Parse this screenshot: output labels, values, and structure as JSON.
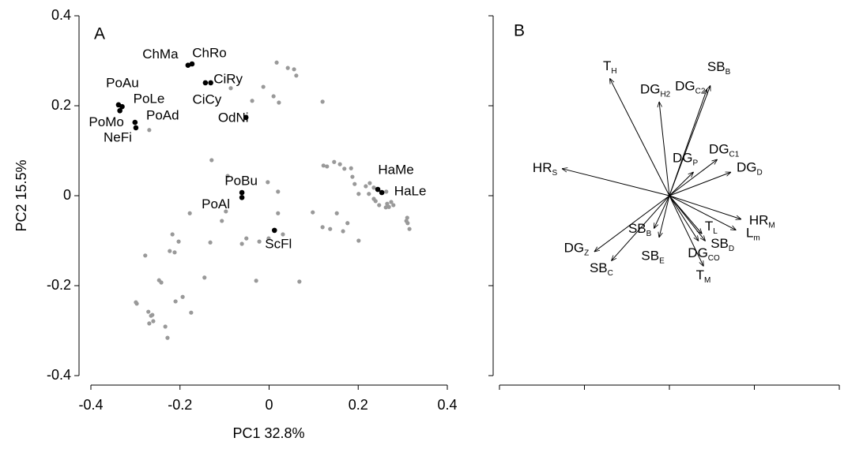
{
  "chart_data": [
    {
      "type": "scatter",
      "panel_label": "A",
      "xlabel": "PC1 32.8%",
      "ylabel": "PC2 15.5%",
      "xlim": [
        -0.4,
        0.4
      ],
      "ylim": [
        -0.4,
        0.4
      ],
      "xticks": [
        -0.4,
        -0.2,
        0,
        0.2,
        0.4
      ],
      "yticks": [
        -0.4,
        -0.2,
        0,
        0.2,
        0.4
      ],
      "series": [
        {
          "color": "#999999",
          "x": [
            0.017,
            0.042,
            0.056,
            0.061,
            -0.013,
            0.01,
            0.022,
            0.12,
            -0.038,
            -0.086,
            -0.269,
            -0.129,
            -0.093,
            -0.003,
            0.02,
            0.02,
            -0.097,
            -0.106,
            -0.132,
            -0.178,
            -0.217,
            -0.203,
            -0.223,
            -0.212,
            -0.278,
            -0.061,
            -0.051,
            -0.022,
            0.031,
            -0.029,
            0.068,
            -0.001,
            -0.247,
            -0.242,
            -0.297,
            -0.299,
            -0.271,
            -0.265,
            -0.269,
            -0.26,
            -0.262,
            -0.233,
            -0.228,
            -0.21,
            -0.194,
            -0.175,
            -0.145,
            0.122,
            0.13,
            0.146,
            0.159,
            0.169,
            0.184,
            0.187,
            0.192,
            0.201,
            0.217,
            0.226,
            0.235,
            0.239,
            0.247,
            0.262,
            0.265,
            0.269,
            0.274,
            0.279,
            0.263,
            0.224,
            0.235,
            0.31,
            0.311,
            0.315,
            0.308,
            0.152,
            0.166,
            0.201,
            0.176,
            0.12,
            0.098,
            0.137
          ],
          "y": [
            0.296,
            0.284,
            0.281,
            0.267,
            0.242,
            0.221,
            0.207,
            0.209,
            0.211,
            0.239,
            0.146,
            0.079,
            0.044,
            0.03,
            0.009,
            -0.039,
            -0.035,
            -0.056,
            -0.104,
            -0.039,
            -0.086,
            -0.102,
            -0.123,
            -0.126,
            -0.133,
            -0.107,
            -0.095,
            -0.102,
            -0.086,
            -0.189,
            -0.191,
            -0.095,
            -0.188,
            -0.193,
            -0.24,
            -0.237,
            -0.258,
            -0.267,
            -0.284,
            -0.279,
            -0.265,
            -0.291,
            -0.316,
            -0.235,
            -0.225,
            -0.26,
            -0.182,
            0.067,
            0.065,
            0.075,
            0.07,
            0.06,
            0.061,
            0.042,
            0.026,
            0.004,
            0.021,
            0.028,
            0.018,
            -0.012,
            -0.021,
            -0.026,
            -0.018,
            -0.025,
            -0.014,
            -0.021,
            0.009,
            0.004,
            -0.007,
            -0.049,
            -0.061,
            -0.074,
            -0.056,
            -0.039,
            -0.079,
            -0.1,
            -0.061,
            -0.07,
            -0.037,
            -0.074
          ]
        },
        {
          "color": "#000000",
          "labels": [
            "ChMa",
            "ChRo",
            "CiRy",
            "CiCy",
            "PoAu",
            "PoLe",
            "PoMo",
            "PoAd",
            "NeFi",
            "OdNi",
            "HaMe",
            "HaLe",
            "PoBu",
            "PoAl",
            "ScFl"
          ],
          "x": [
            -0.182,
            -0.173,
            -0.131,
            -0.143,
            -0.338,
            -0.33,
            -0.335,
            -0.301,
            -0.299,
            -0.052,
            0.244,
            0.253,
            -0.061,
            -0.061,
            0.012
          ],
          "y": [
            0.29,
            0.293,
            0.251,
            0.251,
            0.202,
            0.198,
            0.189,
            0.163,
            0.151,
            0.174,
            0.014,
            0.007,
            0.007,
            -0.004,
            -0.077
          ]
        }
      ]
    },
    {
      "type": "biplot",
      "panel_label": "B",
      "xlim": [
        -1,
        1
      ],
      "ylim": [
        -1,
        1
      ],
      "xticks": [
        -1,
        -0.5,
        0,
        0.5,
        1
      ],
      "yticks": [
        -1,
        -0.5,
        0,
        0.5,
        1
      ],
      "loadings": {
        "labels": [
          {
            "text": "T",
            "sub": "H"
          },
          {
            "text": "SB",
            "sub": "B"
          },
          {
            "text": "DG",
            "sub": "H2"
          },
          {
            "text": "DG",
            "sub": "C2"
          },
          {
            "text": "DG",
            "sub": "P"
          },
          {
            "text": "DG",
            "sub": "C1"
          },
          {
            "text": "DG",
            "sub": "D"
          },
          {
            "text": "HR",
            "sub": "S"
          },
          {
            "text": "HR",
            "sub": "M"
          },
          {
            "text": "L",
            "sub": "m"
          },
          {
            "text": "T",
            "sub": "L"
          },
          {
            "text": "SB",
            "sub": "D"
          },
          {
            "text": "DG",
            "sub": "CO"
          },
          {
            "text": "T",
            "sub": "M"
          },
          {
            "text": "SB",
            "sub": "B"
          },
          {
            "text": "SB",
            "sub": "E"
          },
          {
            "text": "SB",
            "sub": "C"
          },
          {
            "text": "DG",
            "sub": "Z"
          }
        ],
        "x": [
          -0.35,
          0.24,
          -0.06,
          0.22,
          0.14,
          0.28,
          0.36,
          -0.63,
          0.42,
          0.39,
          0.19,
          0.21,
          0.17,
          0.2,
          -0.09,
          -0.06,
          -0.34,
          -0.44
        ],
        "y": [
          0.65,
          0.61,
          0.52,
          0.59,
          0.13,
          0.2,
          0.13,
          0.15,
          -0.13,
          -0.19,
          -0.21,
          -0.25,
          -0.25,
          -0.39,
          -0.18,
          -0.23,
          -0.36,
          -0.31
        ]
      }
    }
  ]
}
